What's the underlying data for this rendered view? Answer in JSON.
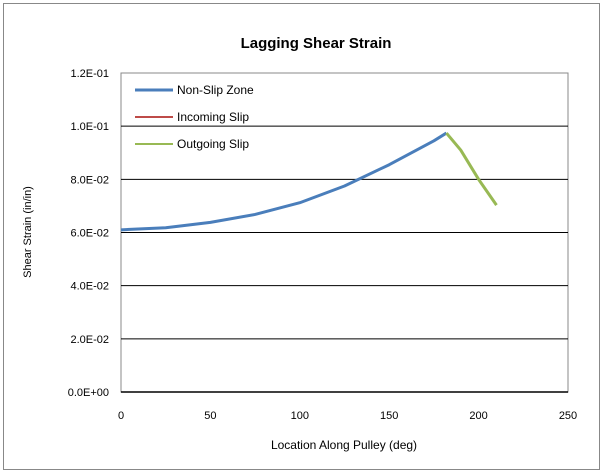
{
  "chart_data": {
    "type": "line",
    "title": "Lagging Shear Strain",
    "xlabel": "Location Along Pulley (deg)",
    "ylabel": "Shear Strain (in/in)",
    "xlim": [
      0,
      250
    ],
    "ylim": [
      0,
      0.12
    ],
    "xticks": [
      "0",
      "50",
      "100",
      "150",
      "200",
      "250"
    ],
    "yticks": [
      "0.0E+00",
      "2.0E-02",
      "4.0E-02",
      "6.0E-02",
      "8.0E-02",
      "1.0E-01",
      "1.2E-01"
    ],
    "grid": "horizontal",
    "legend_position": "top-left",
    "series": [
      {
        "name": "Non-Slip Zone",
        "color": "#4a7ebb",
        "x": [
          0,
          25,
          50,
          75,
          100,
          125,
          150,
          175,
          182
        ],
        "y": [
          0.061,
          0.0618,
          0.0638,
          0.0668,
          0.0712,
          0.0775,
          0.0855,
          0.0945,
          0.0974
        ]
      },
      {
        "name": "Incoming Slip",
        "color": "#be4b48",
        "x": [],
        "y": []
      },
      {
        "name": "Outgoing Slip",
        "color": "#98b954",
        "x": [
          182,
          190,
          200,
          210
        ],
        "y": [
          0.0974,
          0.091,
          0.08,
          0.0703
        ]
      }
    ]
  }
}
